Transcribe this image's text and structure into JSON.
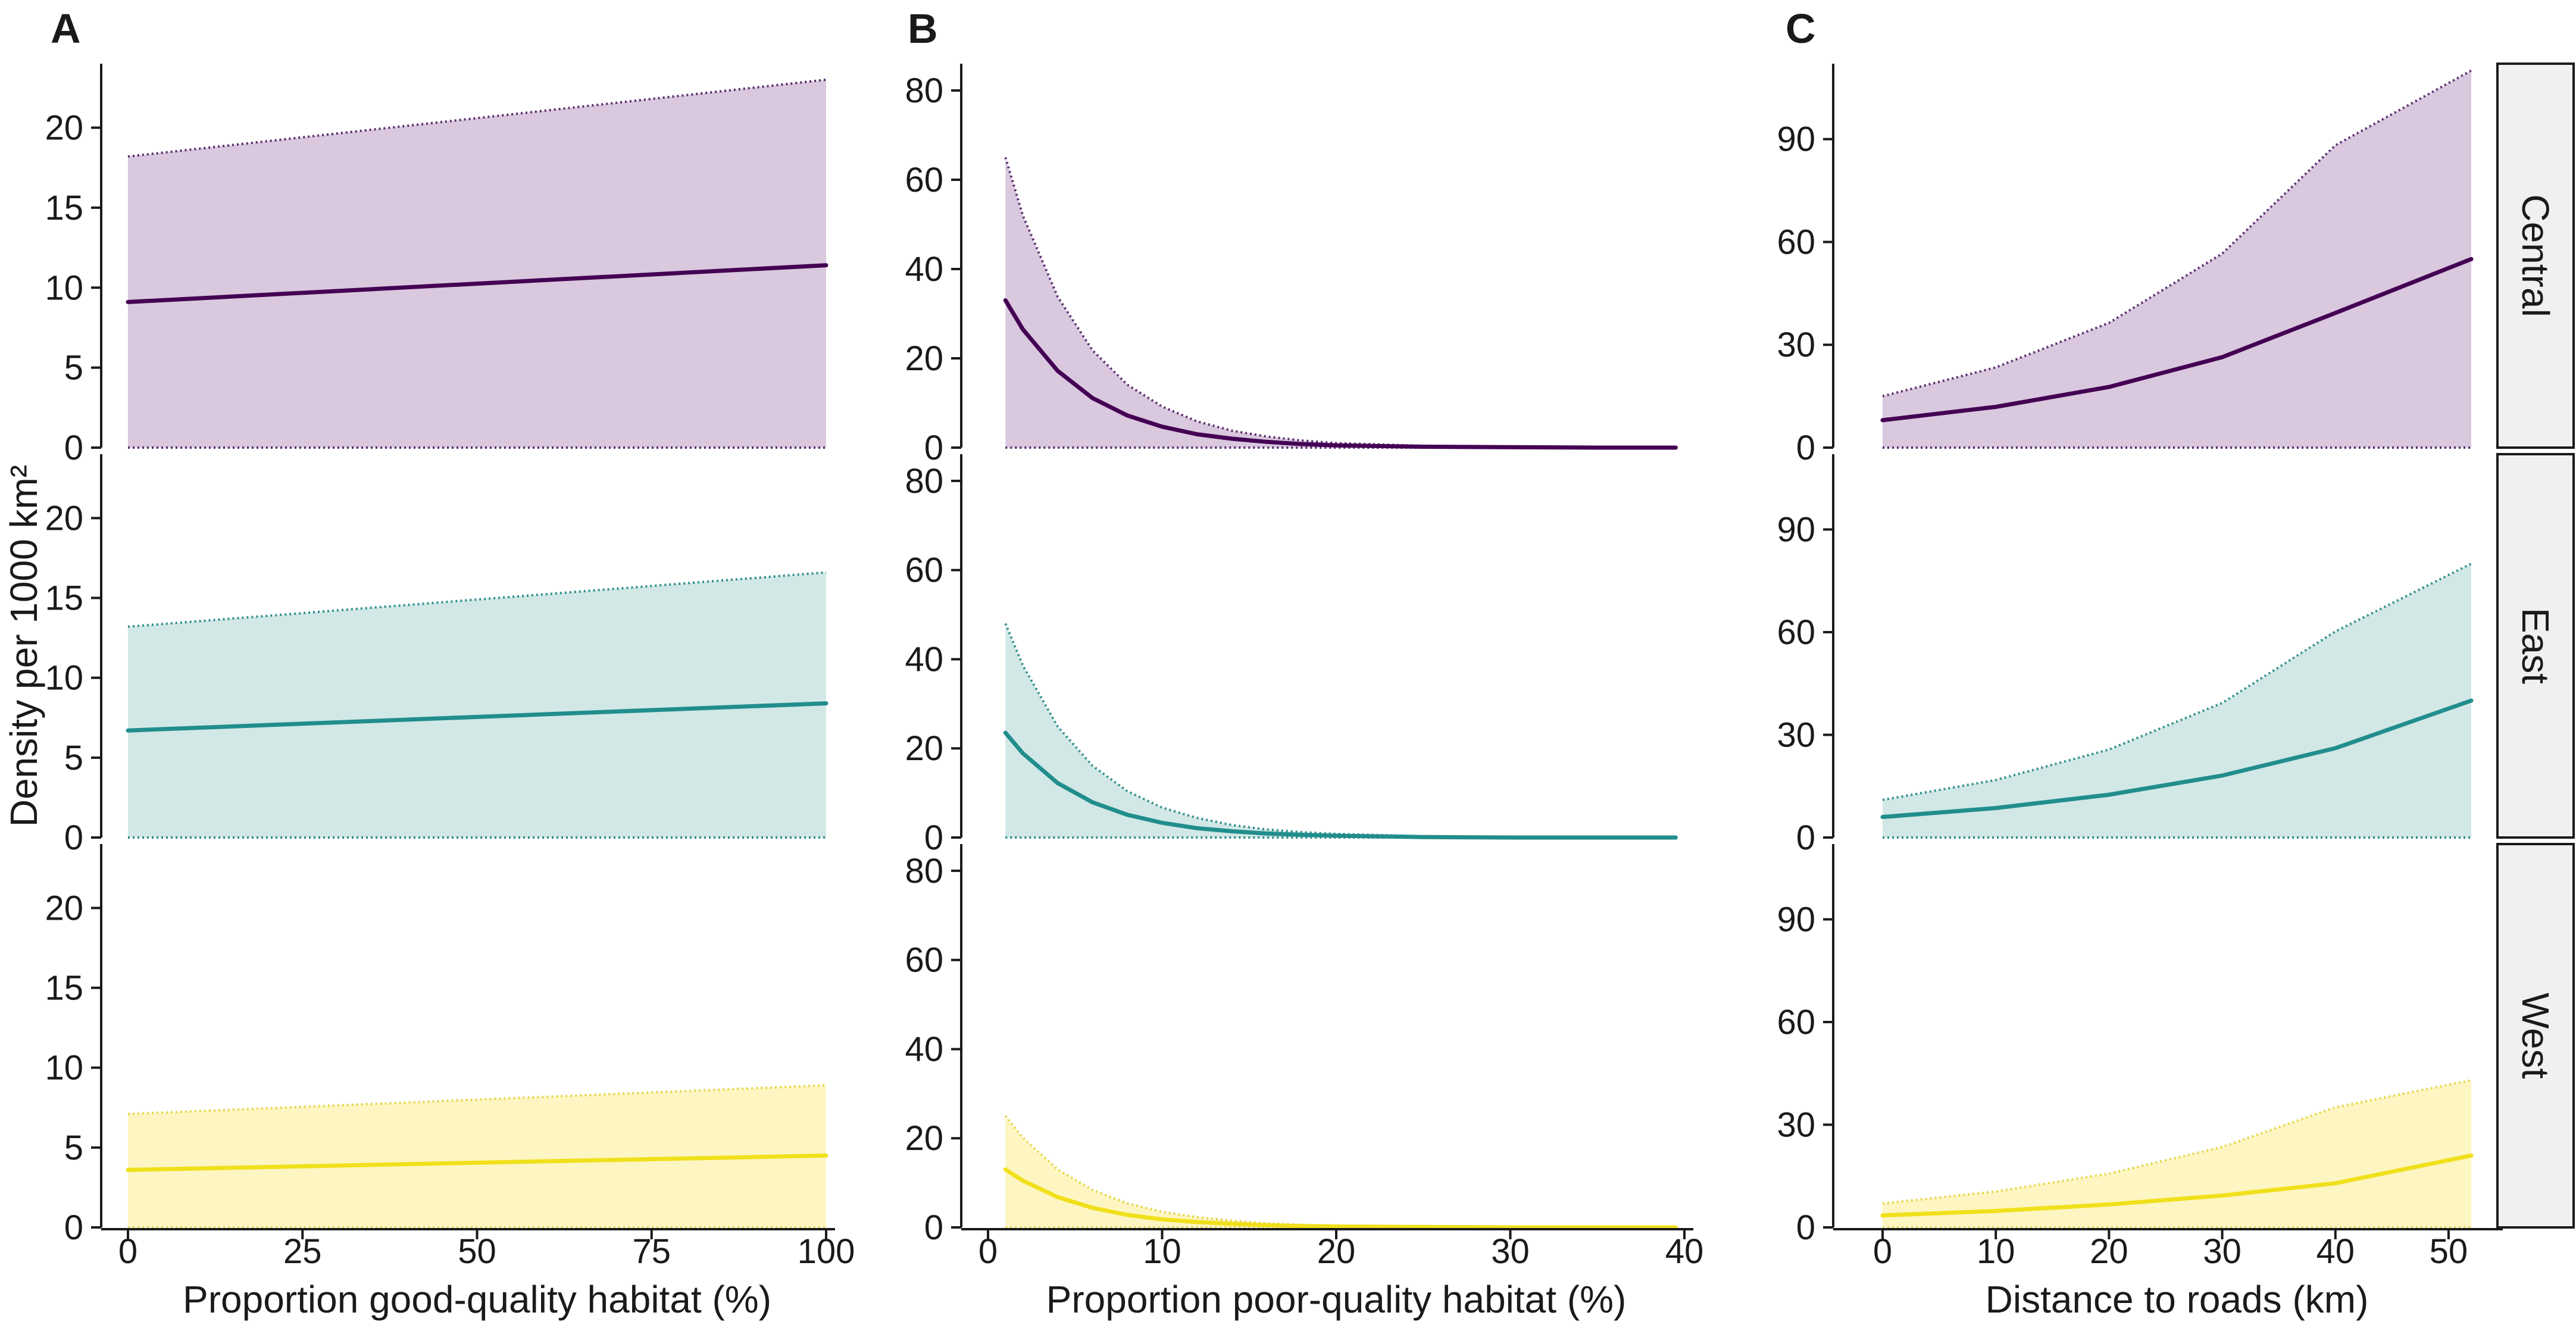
{
  "colors": {
    "Central": {
      "line": "#440154",
      "fill": "#d9c8de",
      "bound": "#5b2c6f"
    },
    "East": {
      "line": "#218e8d",
      "fill": "#d2e8e6",
      "bound": "#2f8f8d"
    },
    "West": {
      "line": "#f0e01c",
      "fill": "#fdf6c2",
      "bound": "#e6d64a"
    }
  },
  "y_axis_title": "Density per 1000 km²",
  "regions": [
    "Central",
    "East",
    "West"
  ],
  "chart_data": [
    {
      "panel": "A",
      "type": "line",
      "xlabel": "Proportion good-quality habitat (%)",
      "xlim": [
        0,
        100
      ],
      "xticks": [
        "0",
        "25",
        "50",
        "75",
        "100"
      ],
      "xtick_values": [
        0,
        25,
        50,
        75,
        100
      ],
      "ylim": [
        0,
        24
      ],
      "yticks": [
        "0",
        "5",
        "10",
        "15",
        "20"
      ],
      "ytick_values": [
        0,
        5,
        10,
        15,
        20
      ],
      "series": [
        {
          "name": "Central",
          "x": [
            0,
            100
          ],
          "mean": [
            9.1,
            11.4
          ],
          "lower": [
            0,
            0
          ],
          "upper": [
            18.2,
            23.0
          ]
        },
        {
          "name": "East",
          "x": [
            0,
            100
          ],
          "mean": [
            6.7,
            8.4
          ],
          "lower": [
            0,
            0
          ],
          "upper": [
            13.2,
            16.6
          ]
        },
        {
          "name": "West",
          "x": [
            0,
            100
          ],
          "mean": [
            3.6,
            4.5
          ],
          "lower": [
            0,
            0
          ],
          "upper": [
            7.1,
            8.9
          ]
        }
      ]
    },
    {
      "panel": "B",
      "type": "line",
      "xlabel": "Proportion poor-quality habitat (%)",
      "xlim": [
        0,
        40
      ],
      "xticks": [
        "0",
        "10",
        "20",
        "30",
        "40"
      ],
      "xtick_values": [
        0,
        10,
        20,
        30,
        40
      ],
      "ylim": [
        0,
        86
      ],
      "yticks": [
        "0",
        "20",
        "40",
        "60",
        "80"
      ],
      "ytick_values": [
        0,
        20,
        40,
        60,
        80
      ],
      "series": [
        {
          "name": "Central",
          "x": [
            1,
            2,
            4,
            6,
            8,
            10,
            12,
            14,
            16,
            18,
            20,
            25,
            30,
            35,
            39.5
          ],
          "mean": [
            33,
            26.5,
            17.2,
            11.1,
            7.2,
            4.7,
            3.0,
            2.0,
            1.3,
            0.8,
            0.5,
            0.2,
            0.1,
            0,
            0
          ],
          "lower": [
            0,
            0,
            0,
            0,
            0,
            0,
            0,
            0,
            0,
            0,
            0,
            0,
            0,
            0,
            0
          ],
          "upper": [
            65,
            52,
            33.8,
            21.8,
            14.1,
            9.2,
            5.9,
            3.8,
            2.5,
            1.6,
            1.0,
            0.4,
            0.2,
            0.1,
            0
          ]
        },
        {
          "name": "East",
          "x": [
            1,
            2,
            4,
            6,
            8,
            10,
            12,
            14,
            16,
            18,
            20,
            25,
            30,
            35,
            39.5
          ],
          "mean": [
            23.5,
            18.9,
            12.2,
            7.9,
            5.1,
            3.3,
            2.1,
            1.4,
            0.9,
            0.6,
            0.4,
            0.1,
            0,
            0,
            0
          ],
          "lower": [
            0,
            0,
            0,
            0,
            0,
            0,
            0,
            0,
            0,
            0,
            0,
            0,
            0,
            0,
            0
          ],
          "upper": [
            48,
            38.6,
            24.9,
            16.1,
            10.4,
            6.7,
            4.4,
            2.8,
            1.8,
            1.2,
            0.8,
            0.3,
            0.1,
            0,
            0
          ]
        },
        {
          "name": "West",
          "x": [
            1,
            2,
            4,
            6,
            8,
            10,
            12,
            14,
            16,
            18,
            20,
            25,
            30,
            35,
            39.5
          ],
          "mean": [
            13,
            10.5,
            6.8,
            4.4,
            2.8,
            1.8,
            1.2,
            0.8,
            0.5,
            0.3,
            0.2,
            0.1,
            0,
            0,
            0
          ],
          "lower": [
            0,
            0,
            0,
            0,
            0,
            0,
            0,
            0,
            0,
            0,
            0,
            0,
            0,
            0,
            0
          ],
          "upper": [
            25,
            20.1,
            13,
            8.4,
            5.4,
            3.5,
            2.3,
            1.5,
            0.9,
            0.6,
            0.4,
            0.1,
            0,
            0,
            0
          ]
        }
      ]
    },
    {
      "panel": "C",
      "type": "line",
      "xlabel": "Distance to roads (km)",
      "xlim": [
        -2,
        54
      ],
      "xticks": [
        "0",
        "10",
        "20",
        "30",
        "40",
        "50"
      ],
      "xtick_values": [
        0,
        10,
        20,
        30,
        40,
        50
      ],
      "ylim": [
        0,
        112
      ],
      "yticks": [
        "0",
        "30",
        "60",
        "90"
      ],
      "ytick_values": [
        0,
        30,
        60,
        90
      ],
      "series": [
        {
          "name": "Central",
          "x": [
            0,
            10,
            20,
            30,
            40,
            52
          ],
          "mean": [
            8,
            11.9,
            17.7,
            26.4,
            39.3,
            55
          ],
          "lower": [
            0,
            0,
            0,
            0,
            0,
            0
          ],
          "upper": [
            15,
            23.4,
            36.4,
            56.6,
            88.2,
            110
          ]
        },
        {
          "name": "East",
          "x": [
            0,
            10,
            20,
            30,
            40,
            52
          ],
          "mean": [
            6,
            8.6,
            12.5,
            18.1,
            26.1,
            40
          ],
          "lower": [
            0,
            0,
            0,
            0,
            0,
            0
          ],
          "upper": [
            11,
            16.8,
            25.7,
            39.3,
            60.2,
            80
          ]
        },
        {
          "name": "West",
          "x": [
            0,
            10,
            20,
            30,
            40,
            52
          ],
          "mean": [
            3.5,
            4.8,
            6.7,
            9.3,
            12.9,
            21
          ],
          "lower": [
            0,
            0,
            0,
            0,
            0,
            0
          ],
          "upper": [
            7,
            10.5,
            15.7,
            23.5,
            35.1,
            43
          ]
        }
      ]
    }
  ]
}
